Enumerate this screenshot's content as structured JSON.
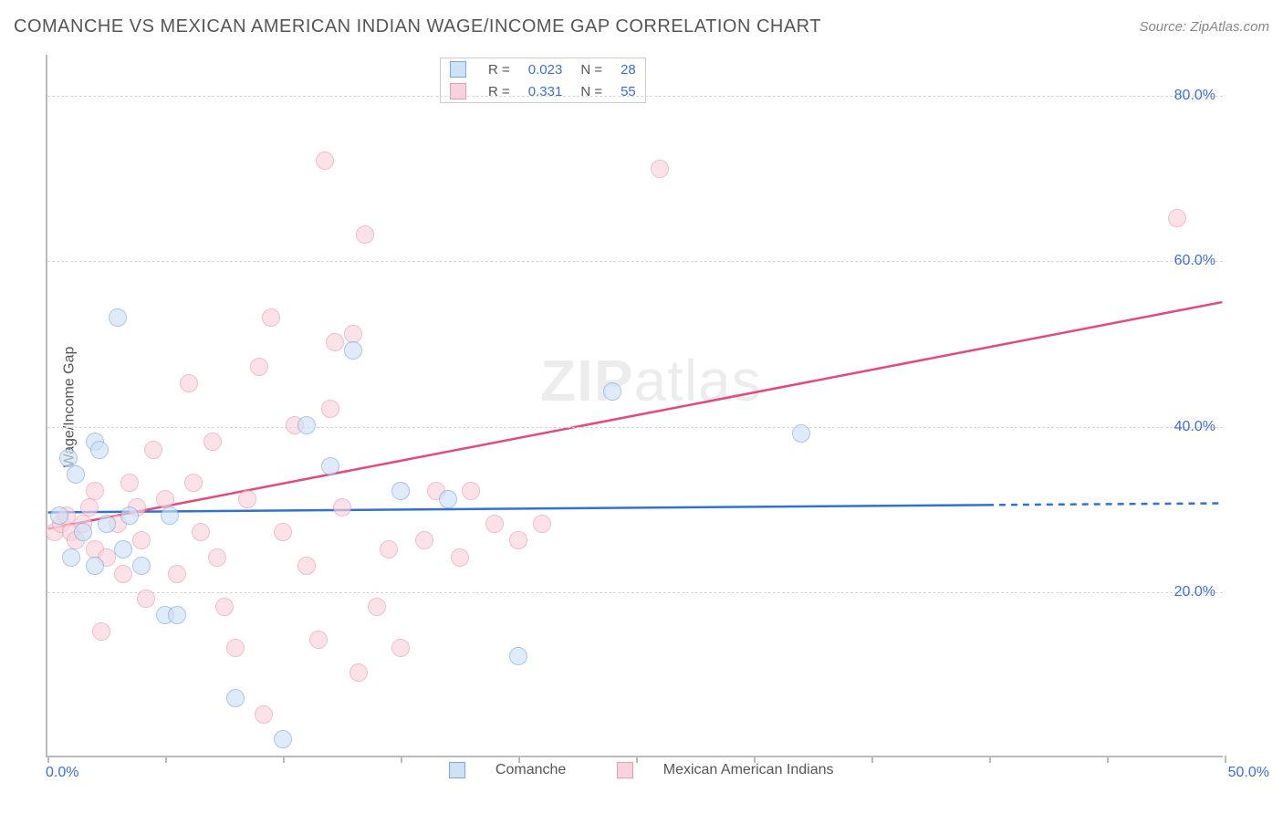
{
  "title": "COMANCHE VS MEXICAN AMERICAN INDIAN WAGE/INCOME GAP CORRELATION CHART",
  "source_label": "Source: ZipAtlas.com",
  "ylabel": "Wage/Income Gap",
  "watermark_bold": "ZIP",
  "watermark_rest": "atlas",
  "xlim": [
    0,
    50
  ],
  "ylim": [
    0,
    85
  ],
  "grid_y": [
    20,
    40,
    60,
    80
  ],
  "x_ticks_minor": [
    0,
    5,
    10,
    15,
    20,
    25,
    30,
    35,
    40,
    45,
    50
  ],
  "y_tick_labels": {
    "20": "20.0%",
    "40": "40.0%",
    "60": "60.0%",
    "80": "80.0%"
  },
  "x_first_label": "0.0%",
  "x_last_label": "50.0%",
  "colors": {
    "blue_fill": "#cfe1f5",
    "blue_stroke": "#7aa8e0",
    "blue_line": "#2f72d4",
    "pink_fill": "#f8d3dd",
    "pink_stroke": "#ec9ab2",
    "pink_line": "#e8477a",
    "grid": "#d8d8d8",
    "axis": "#bbbbbb",
    "ticklabel": "#3b6fd6",
    "text": "#555555",
    "bg": "#ffffff"
  },
  "stats_legend": [
    {
      "swatch": "blue",
      "R_label": "R =",
      "R": "0.023",
      "N_label": "N =",
      "N": "28"
    },
    {
      "swatch": "pink",
      "R_label": "R =",
      "R": "0.331",
      "N_label": "N =",
      "N": "55"
    }
  ],
  "series_legend": [
    {
      "swatch": "blue",
      "label": "Comanche"
    },
    {
      "swatch": "pink",
      "label": "Mexican American Indians"
    }
  ],
  "trend_lines": {
    "blue": {
      "x1": 0,
      "y1": 29.5,
      "x2_solid": 40,
      "y2_solid": 30.4,
      "x2_dash": 50,
      "y2_dash": 30.6
    },
    "pink": {
      "x1": 0,
      "y1": 27.5,
      "x2": 50,
      "y2": 55
    }
  },
  "points_blue": [
    [
      0.5,
      29
    ],
    [
      0.9,
      36
    ],
    [
      1,
      24
    ],
    [
      1.2,
      34
    ],
    [
      1.5,
      27
    ],
    [
      2,
      23
    ],
    [
      2,
      38
    ],
    [
      2.2,
      37
    ],
    [
      2.5,
      28
    ],
    [
      3,
      53
    ],
    [
      3.2,
      25
    ],
    [
      3.5,
      29
    ],
    [
      4,
      23
    ],
    [
      5,
      17
    ],
    [
      5.2,
      29
    ],
    [
      5.5,
      17
    ],
    [
      8,
      7
    ],
    [
      10,
      2
    ],
    [
      11,
      40
    ],
    [
      12,
      35
    ],
    [
      13,
      49
    ],
    [
      15,
      32
    ],
    [
      17,
      31
    ],
    [
      20,
      12
    ],
    [
      24,
      44
    ],
    [
      32,
      39
    ]
  ],
  "points_pink": [
    [
      0.3,
      27
    ],
    [
      0.6,
      28
    ],
    [
      0.8,
      29
    ],
    [
      1,
      27
    ],
    [
      1.2,
      26
    ],
    [
      1.5,
      28
    ],
    [
      1.8,
      30
    ],
    [
      2,
      32
    ],
    [
      2,
      25
    ],
    [
      2.3,
      15
    ],
    [
      2.5,
      24
    ],
    [
      3,
      28
    ],
    [
      3.2,
      22
    ],
    [
      3.5,
      33
    ],
    [
      3.8,
      30
    ],
    [
      4,
      26
    ],
    [
      4.2,
      19
    ],
    [
      4.5,
      37
    ],
    [
      5,
      31
    ],
    [
      5.5,
      22
    ],
    [
      6,
      45
    ],
    [
      6.2,
      33
    ],
    [
      6.5,
      27
    ],
    [
      7,
      38
    ],
    [
      7.2,
      24
    ],
    [
      7.5,
      18
    ],
    [
      8,
      13
    ],
    [
      8.5,
      31
    ],
    [
      9,
      47
    ],
    [
      9.2,
      5
    ],
    [
      9.5,
      53
    ],
    [
      10,
      27
    ],
    [
      10.5,
      40
    ],
    [
      11,
      23
    ],
    [
      11.5,
      14
    ],
    [
      11.8,
      72
    ],
    [
      12,
      42
    ],
    [
      12.2,
      50
    ],
    [
      12.5,
      30
    ],
    [
      13,
      51
    ],
    [
      13.2,
      10
    ],
    [
      13.5,
      63
    ],
    [
      14,
      18
    ],
    [
      14.5,
      25
    ],
    [
      15,
      13
    ],
    [
      16,
      26
    ],
    [
      16.5,
      32
    ],
    [
      17.5,
      24
    ],
    [
      18,
      32
    ],
    [
      19,
      28
    ],
    [
      20,
      26
    ],
    [
      21,
      28
    ],
    [
      26,
      71
    ],
    [
      48,
      65
    ]
  ]
}
